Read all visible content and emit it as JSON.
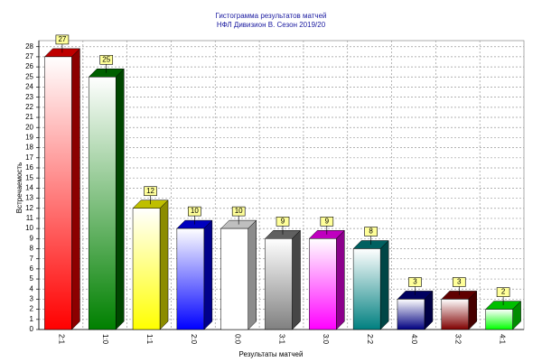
{
  "chart_data": {
    "type": "bar",
    "title": "Гистограмма результатов матчей",
    "subtitle": "НФЛ Дивизион В. Сезон 2019/20",
    "x_label": "Результаты матчей",
    "y_label": "Встречаемость",
    "categories": [
      "2:1",
      "1:0",
      "1:1",
      "2:0",
      "0:0",
      "3:1",
      "3:0",
      "2:2",
      "4:0",
      "3:2",
      "4:1"
    ],
    "values": [
      27,
      25,
      12,
      10,
      10,
      9,
      9,
      8,
      3,
      3,
      2
    ],
    "colors": [
      "#ff0000",
      "#008000",
      "#ffff00",
      "#0000ff",
      "#ffffff",
      "#808080",
      "#ff00ff",
      "#008080",
      "#000080",
      "#800000",
      "#00ff00"
    ],
    "ylim": [
      0,
      28.6
    ],
    "yticks": [
      0,
      1,
      2,
      3,
      4,
      5,
      6,
      7,
      8,
      9,
      10,
      11,
      12,
      13,
      14,
      15,
      16,
      17,
      18,
      19,
      20,
      21,
      22,
      23,
      24,
      25,
      26,
      27,
      28
    ],
    "grid": true
  }
}
